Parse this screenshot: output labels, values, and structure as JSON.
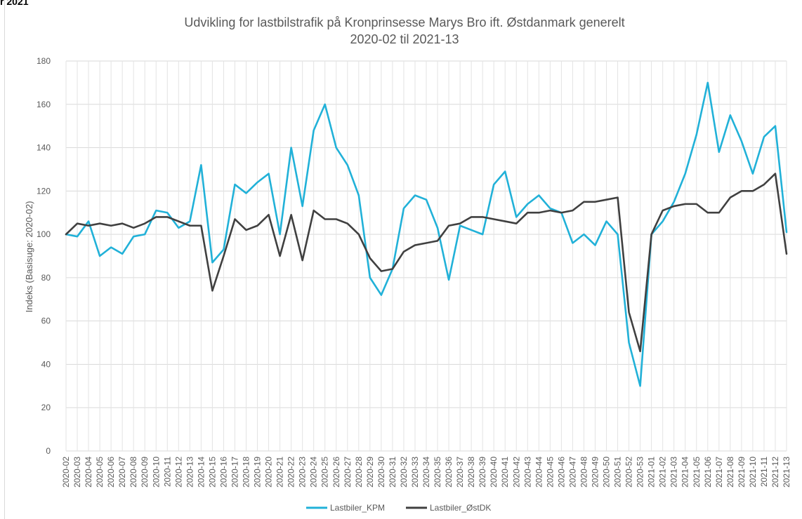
{
  "page": {
    "corner_label": "r 2021"
  },
  "chart_data": {
    "type": "line",
    "title": "Udvikling for lastbilstrafik på Kronprinsesse Marys Bro ift. Østdanmark generelt",
    "subtitle": "2020-02 til 2021-13",
    "xlabel": "",
    "ylabel": "Indeks (Basisuge: 2020-02)",
    "ylim": [
      0,
      180
    ],
    "yticks": [
      0,
      20,
      40,
      60,
      80,
      100,
      120,
      140,
      160,
      180
    ],
    "grid": true,
    "legend_position": "bottom",
    "categories": [
      "2020-02",
      "2020-03",
      "2020-04",
      "2020-05",
      "2020-06",
      "2020-07",
      "2020-08",
      "2020-09",
      "2020-10",
      "2020-11",
      "2020-12",
      "2020-13",
      "2020-14",
      "2020-15",
      "2020-16",
      "2020-17",
      "2020-18",
      "2020-19",
      "2020-20",
      "2020-21",
      "2020-22",
      "2020-23",
      "2020-24",
      "2020-25",
      "2020-26",
      "2020-27",
      "2020-28",
      "2020-29",
      "2020-30",
      "2020-31",
      "2020-32",
      "2020-33",
      "2020-34",
      "2020-35",
      "2020-36",
      "2020-37",
      "2020-38",
      "2020-39",
      "2020-40",
      "2020-41",
      "2020-42",
      "2020-43",
      "2020-44",
      "2020-45",
      "2020-46",
      "2020-47",
      "2020-48",
      "2020-49",
      "2020-50",
      "2020-51",
      "2020-52",
      "2020-53",
      "2021-01",
      "2021-02",
      "2021-03",
      "2021-04",
      "2021-05",
      "2021-06",
      "2021-07",
      "2021-08",
      "2021-09",
      "2021-10",
      "2021-11",
      "2021-12",
      "2021-13"
    ],
    "series": [
      {
        "name": "Lastbiler_KPM",
        "color": "#21b1d8",
        "values": [
          100,
          99,
          106,
          90,
          94,
          91,
          99,
          100,
          111,
          110,
          103,
          106,
          132,
          87,
          93,
          123,
          119,
          124,
          128,
          100,
          140,
          113,
          148,
          160,
          140,
          132,
          118,
          80,
          72,
          84,
          112,
          118,
          116,
          103,
          79,
          104,
          102,
          100,
          123,
          129,
          108,
          114,
          118,
          112,
          110,
          96,
          100,
          95,
          106,
          100,
          50,
          30,
          100,
          106,
          115,
          128,
          146,
          170,
          138,
          155,
          143,
          128,
          145,
          150,
          101
        ]
      },
      {
        "name": "Lastbiler_ØstDK",
        "color": "#404040",
        "values": [
          100,
          105,
          104,
          105,
          104,
          105,
          103,
          105,
          108,
          108,
          106,
          104,
          104,
          74,
          90,
          107,
          102,
          104,
          109,
          90,
          109,
          88,
          111,
          107,
          107,
          105,
          100,
          89,
          83,
          84,
          92,
          95,
          96,
          97,
          104,
          105,
          108,
          108,
          107,
          106,
          105,
          110,
          110,
          111,
          110,
          111,
          115,
          115,
          116,
          117,
          64,
          46,
          100,
          111,
          113,
          114,
          114,
          110,
          110,
          117,
          120,
          120,
          123,
          128,
          91
        ]
      }
    ]
  }
}
